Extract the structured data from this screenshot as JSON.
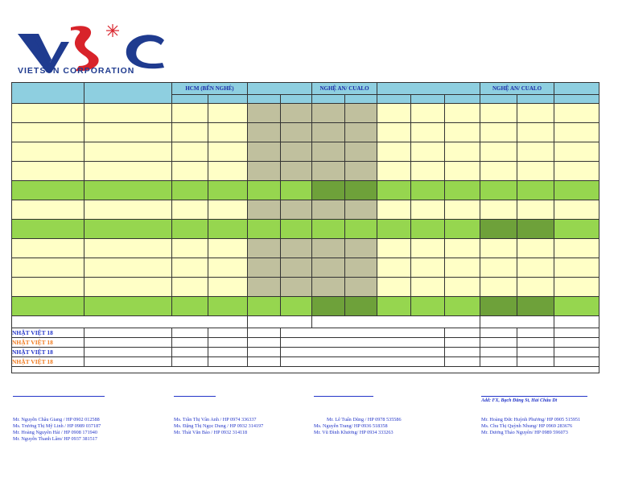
{
  "company": {
    "logo_letters": "VSC",
    "name": "VIETSUN CORPORATION",
    "colors": {
      "blue": "#1f3b8f",
      "red": "#d8232a"
    }
  },
  "table": {
    "headers": [
      "",
      "",
      "HCM (BẾN NGHÉ)",
      "",
      "",
      "",
      "NGHỆ AN/ CUALO",
      "",
      "",
      "",
      "",
      "NGHỆ AN/ CUALO",
      "",
      ""
    ],
    "row_colors": [
      [
        "y",
        "y",
        "y",
        "y",
        "t",
        "t",
        "t",
        "t",
        "y",
        "y",
        "y",
        "y",
        "y",
        "y"
      ],
      [
        "y",
        "y",
        "y",
        "y",
        "t",
        "t",
        "t",
        "t",
        "y",
        "y",
        "y",
        "y",
        "y",
        "y"
      ],
      [
        "y",
        "y",
        "y",
        "y",
        "t",
        "t",
        "t",
        "t",
        "y",
        "y",
        "y",
        "y",
        "y",
        "y"
      ],
      [
        "y",
        "y",
        "y",
        "y",
        "t",
        "t",
        "t",
        "t",
        "y",
        "y",
        "y",
        "y",
        "y",
        "y"
      ],
      [
        "g",
        "g",
        "g",
        "g",
        "g",
        "g",
        "d",
        "d",
        "g",
        "g",
        "g",
        "g",
        "g",
        "g"
      ],
      [
        "y",
        "y",
        "y",
        "y",
        "t",
        "t",
        "t",
        "t",
        "y",
        "y",
        "y",
        "y",
        "y",
        "y"
      ],
      [
        "g",
        "g",
        "g",
        "g",
        "g",
        "g",
        "g",
        "g",
        "g",
        "g",
        "g",
        "d",
        "d",
        "g"
      ],
      [
        "y",
        "y",
        "y",
        "y",
        "t",
        "t",
        "t",
        "t",
        "y",
        "y",
        "y",
        "y",
        "y",
        "y"
      ],
      [
        "y",
        "y",
        "y",
        "y",
        "t",
        "t",
        "t",
        "t",
        "y",
        "y",
        "y",
        "y",
        "y",
        "y"
      ],
      [
        "y",
        "y",
        "y",
        "y",
        "t",
        "t",
        "t",
        "t",
        "y",
        "y",
        "y",
        "y",
        "y",
        "y"
      ],
      [
        "g",
        "g",
        "g",
        "g",
        "g",
        "g",
        "d",
        "d",
        "g",
        "g",
        "g",
        "d",
        "d",
        "g"
      ]
    ],
    "vessels": [
      {
        "name": "NHẬT VIỆT 18",
        "color": "#2436c8"
      },
      {
        "name": "NHẬT VIỆT 18",
        "color": "#f07a1e"
      },
      {
        "name": "NHẬT VIỆT 18",
        "color": "#2436c8"
      },
      {
        "name": "NHẬT VIỆT 18",
        "color": "#f07a1e"
      }
    ]
  },
  "footer": {
    "address": "Add: FX, Bạch Đằng St, Hải Châu Dt",
    "contacts": [
      [
        "Mr. Nguyễn Châu Giang / HP 0902 012588",
        "Ms. Trương Thị Mỹ Linh / HP 0989 037187",
        "Mr. Hoàng Nguyên Hải / HP 0908 171940",
        "Mr. Nguyễn Thanh Lâm/ HP 0937 381517"
      ],
      [
        "Ms. Trần Thị Vân Anh / HP 0974 336337",
        "Ms. Đặng Thị Ngọc Dung / HP 0932 314197",
        "Mr. Thái Văn Bảo / HP 0932 314118"
      ],
      [
        "Mr. Lê Tuấn Dũng / HP 0978 535586",
        "Ms. Nguyễn Trang/ HP 0936 518358",
        "Mr. Vũ Đình Khương/ HP 0934 333263"
      ],
      [
        "Mr. Hoàng Đức Huỳnh Phương/ HP 0905 515951",
        "Ms. Chu Thị Quỳnh Nhung/ HP 0969 283676",
        "Mr. Dương Thảo Nguyên/ HP 0989 596073"
      ]
    ]
  }
}
